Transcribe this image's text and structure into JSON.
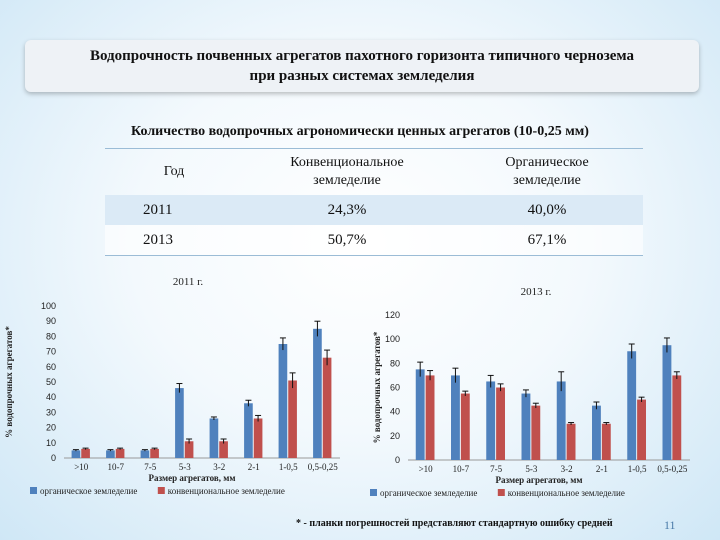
{
  "title": "Водопрочность почвенных агрегатов пахотного горизонта типичного чернозема при разных системах земледелия",
  "subtitle": "Количество водопрочных агрономически ценных агрегатов (10-0,25 мм)",
  "table": {
    "headers": [
      "Год",
      "Конвенциональное земледелие",
      "Органическое земледелие"
    ],
    "rows": [
      [
        "2011",
        "24,3%",
        "40,0%"
      ],
      [
        "2013",
        "50,7%",
        "67,1%"
      ]
    ]
  },
  "chart_data": [
    {
      "type": "bar",
      "title": "2011 г.",
      "xlabel": "Размер агрегатов, мм",
      "ylabel": "% водопрочных агрегатов*",
      "ylim": [
        0,
        100
      ],
      "yticks": [
        "0",
        "10",
        "20",
        "30",
        "40",
        "50",
        "60",
        "70",
        "80",
        "90",
        "100"
      ],
      "categories": [
        ">10",
        "10-7",
        "7-5",
        "5-3",
        "3-2",
        "2-1",
        "1-0,5",
        "0,5-0,25"
      ],
      "series": [
        {
          "name": "органическое земледелие",
          "color": "#4f81bd",
          "values": [
            5,
            5,
            5,
            46,
            26,
            36,
            75,
            85
          ],
          "errors": [
            0.5,
            0.5,
            0.5,
            3,
            1,
            2,
            4,
            5
          ]
        },
        {
          "name": "конвенциональное земледелие",
          "color": "#c0504d",
          "values": [
            6,
            6,
            6,
            11,
            11,
            26,
            51,
            66
          ],
          "errors": [
            0.5,
            0.5,
            0.5,
            1.5,
            1.5,
            2,
            5,
            5
          ]
        }
      ],
      "legend": "bottom"
    },
    {
      "type": "bar",
      "title": "2013 г.",
      "xlabel": "Размер агрегатов, мм",
      "ylabel": "% водопрочных агрегатов*",
      "ylim": [
        0,
        120
      ],
      "yticks": [
        "0",
        "20",
        "40",
        "60",
        "80",
        "100",
        "120"
      ],
      "categories": [
        ">10",
        "10-7",
        "7-5",
        "5-3",
        "3-2",
        "2-1",
        "1-0,5",
        "0,5-0,25"
      ],
      "series": [
        {
          "name": "органическое земледелие",
          "color": "#4f81bd",
          "values": [
            75,
            70,
            65,
            55,
            65,
            45,
            90,
            95
          ],
          "errors": [
            6,
            6,
            5,
            3,
            8,
            3,
            6,
            6
          ]
        },
        {
          "name": "конвенциональное земледелие",
          "color": "#c0504d",
          "values": [
            70,
            55,
            60,
            45,
            30,
            30,
            50,
            70
          ],
          "errors": [
            4,
            2,
            3,
            2,
            1,
            1,
            2,
            3
          ]
        }
      ],
      "legend": "bottom"
    }
  ],
  "footnote": "* - планки погрешностей представляют стандартную ошибку средней",
  "page_number": "11"
}
